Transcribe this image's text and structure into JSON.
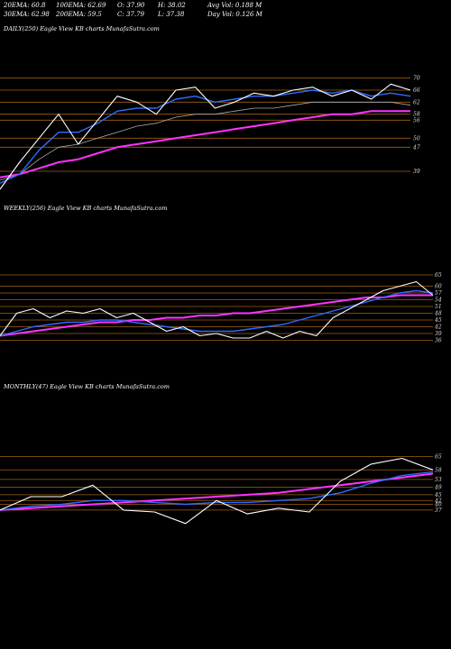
{
  "header": {
    "ema20": "20EMA: 60.8",
    "ema100": "100EMA: 62.69",
    "open": "O: 37.90",
    "high": "H: 38.02",
    "avgvol": "Avg Vol: 0.188  M",
    "ema30": "30EMA: 62.98",
    "ema200": "200EMA: 59.5",
    "close": "C: 37.79",
    "low": "L: 37.38",
    "dayvol": "Day Vol: 0.126  M"
  },
  "panels": [
    {
      "label": "DAILY(250) Eagle  View  KB charts MunafaSutra.com",
      "ticks": [
        "70",
        "66",
        "62",
        "58",
        "56",
        "50",
        "47",
        "39"
      ]
    },
    {
      "label": "WEEKLY(256) Eagle  View  KB charts MunafaSutra.com",
      "ticks": [
        "65",
        "60",
        "57",
        "54",
        "51",
        "48",
        "45",
        "42",
        "39",
        "36"
      ]
    },
    {
      "label": "MONTHLY(47) Eagle  View  KB charts MunafaSutra.com",
      "ticks": [
        "65",
        "58",
        "53",
        "49",
        "45",
        "42",
        "40",
        "37"
      ]
    }
  ],
  "chart_data": [
    {
      "type": "line",
      "name": "daily",
      "count": 250,
      "yticks": [
        70,
        66,
        62,
        58,
        56,
        50,
        47,
        39
      ],
      "ylim": [
        36,
        72
      ],
      "price_y": [
        33,
        42,
        50,
        58,
        48,
        56,
        64,
        62,
        58,
        66,
        67,
        60,
        62,
        65,
        64,
        66,
        67,
        64,
        66,
        63,
        68,
        66
      ],
      "ema_fast_y": [
        35,
        38,
        46,
        52,
        52,
        55,
        59,
        60,
        60,
        63,
        64,
        62,
        63,
        64,
        64,
        65,
        66,
        65,
        66,
        64,
        65,
        64
      ],
      "ema_slow_y": [
        36,
        38,
        43,
        47,
        48,
        50,
        52,
        54,
        55,
        57,
        58,
        58,
        59,
        60,
        60,
        61,
        62,
        62,
        62,
        62,
        62,
        61
      ],
      "ema200_y": [
        37,
        38,
        40,
        42,
        43,
        45,
        47,
        48,
        49,
        50,
        51,
        52,
        53,
        54,
        55,
        56,
        57,
        58,
        58,
        59,
        59,
        59
      ]
    },
    {
      "type": "line",
      "name": "weekly",
      "count": 256,
      "yticks": [
        65,
        60,
        57,
        54,
        51,
        48,
        45,
        42,
        39,
        36
      ],
      "ylim": [
        35,
        67
      ],
      "price_y": [
        38,
        48,
        50,
        46,
        49,
        48,
        50,
        46,
        48,
        44,
        40,
        42,
        38,
        39,
        37,
        37,
        40,
        37,
        40,
        38,
        46,
        50,
        54,
        58,
        60,
        62,
        56
      ],
      "ema_fast_y": [
        38,
        40,
        42,
        43,
        44,
        44,
        45,
        45,
        44,
        43,
        42,
        41,
        40,
        40,
        40,
        41,
        42,
        43,
        45,
        47,
        49,
        51,
        53,
        55,
        57,
        58,
        57
      ],
      "ema200_y": [
        38,
        39,
        40,
        41,
        42,
        43,
        44,
        44,
        45,
        45,
        46,
        46,
        47,
        47,
        48,
        48,
        49,
        50,
        51,
        52,
        53,
        54,
        55,
        55,
        56,
        56,
        56
      ]
    },
    {
      "type": "line",
      "name": "monthly",
      "count": 47,
      "yticks": [
        65,
        58,
        53,
        49,
        45,
        42,
        40,
        37
      ],
      "ylim": [
        28,
        68
      ],
      "price_y": [
        37,
        44,
        44,
        50,
        37,
        36,
        30,
        42,
        35,
        38,
        36,
        52,
        61,
        64,
        58
      ],
      "ema_fast_y": [
        37,
        39,
        40,
        42,
        42,
        41,
        40,
        41,
        41,
        42,
        43,
        46,
        51,
        55,
        57
      ],
      "ema200_y": [
        37,
        38,
        39,
        40,
        41,
        42,
        43,
        44,
        45,
        46,
        48,
        50,
        52,
        54,
        56
      ]
    }
  ],
  "colors": {
    "background": "#000000",
    "price": "#ffffff",
    "ema_fast": "#2f6bff",
    "ema_slow": "#aaaaaa",
    "ema200": "#ff33ff",
    "level_lines": "#c8781e"
  }
}
